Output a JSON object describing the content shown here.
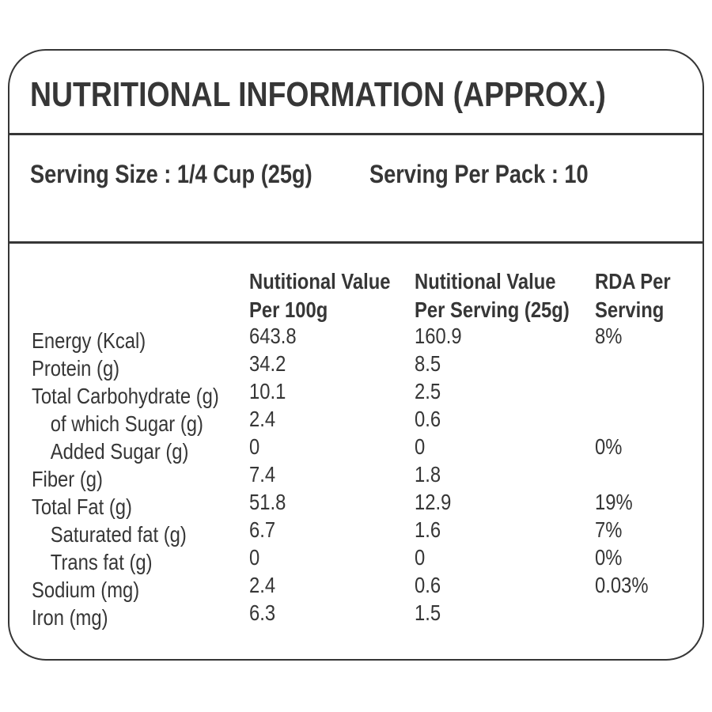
{
  "colors": {
    "text": "#363636",
    "border": "#363636",
    "background": "#ffffff"
  },
  "label": {
    "title": "NUTRITIONAL INFORMATION (APPROX.)",
    "serving": {
      "size": "Serving Size : 1/4 Cup (25g)",
      "per_pack": "Serving Per Pack : 10"
    },
    "table": {
      "headers": [
        {
          "line1": "Nutitional Value",
          "line2": "Per 100g"
        },
        {
          "line1": "Nutitional Value",
          "line2": "Per Serving (25g)"
        },
        {
          "line1": "RDA Per",
          "line2": "Serving"
        }
      ],
      "rows": [
        {
          "label": "Energy (Kcal)",
          "per_100g": "643.8",
          "per_serving": "160.9",
          "rda": "8%"
        },
        {
          "label": "Protein (g)",
          "per_100g": "34.2",
          "per_serving": "8.5",
          "rda": ""
        },
        {
          "label": "Total Carbohydrate (g)",
          "per_100g": "10.1",
          "per_serving": "2.5",
          "rda": ""
        },
        {
          "label": "of which Sugar (g)",
          "per_100g": "2.4",
          "per_serving": "0.6",
          "rda": ""
        },
        {
          "label": "Added Sugar (g)",
          "per_100g": "0",
          "per_serving": "0",
          "rda": "0%"
        },
        {
          "label": "Fiber (g)",
          "per_100g": "7.4",
          "per_serving": "1.8",
          "rda": ""
        },
        {
          "label": "Total Fat (g)",
          "per_100g": "51.8",
          "per_serving": "12.9",
          "rda": "19%"
        },
        {
          "label": "Saturated fat (g)",
          "per_100g": "6.7",
          "per_serving": "1.6",
          "rda": "7%"
        },
        {
          "label": "Trans fat (g)",
          "per_100g": "0",
          "per_serving": "0",
          "rda": "0%"
        },
        {
          "label": "Sodium (mg)",
          "per_100g": "2.4",
          "per_serving": "0.6",
          "rda": "0.03%"
        },
        {
          "label": "Iron (mg)",
          "per_100g": "6.3",
          "per_serving": "1.5",
          "rda": ""
        }
      ]
    }
  }
}
